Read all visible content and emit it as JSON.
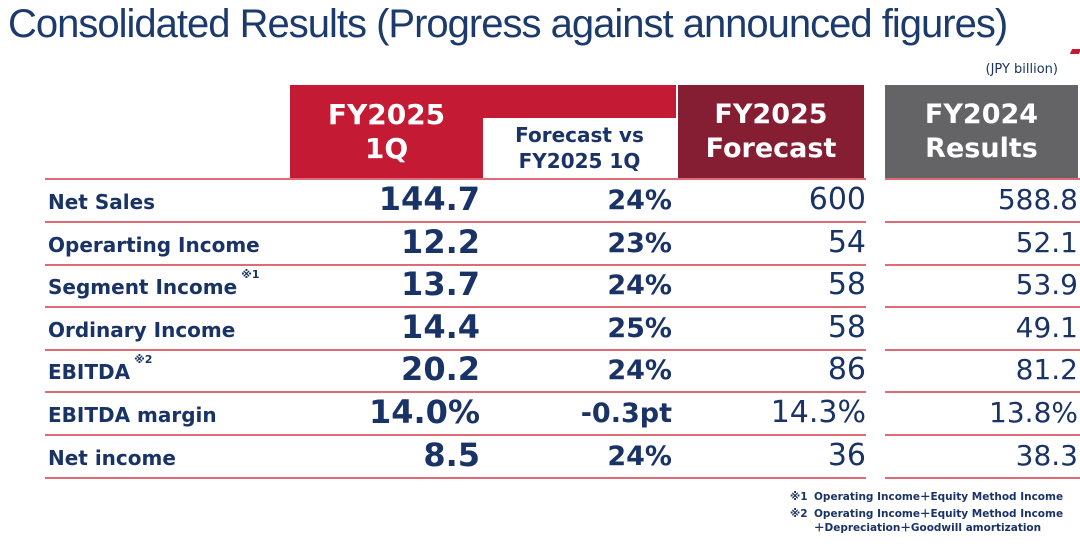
{
  "title": "Consolidated Results (Progress against announced figures)",
  "unit_note": "(JPY billion)",
  "table": {
    "columns": [
      {
        "label": "FY2025 1Q",
        "line1": "FY2025",
        "line2": "1Q"
      },
      {
        "label": "Forecast vs FY2025 1Q",
        "line1": "Forecast vs",
        "line2": "FY2025 1Q"
      },
      {
        "label": "FY2025 Forecast",
        "line1": "FY2025",
        "line2": "Forecast"
      },
      {
        "label": "FY2024 Results",
        "line1": "FY2024",
        "line2": "Results"
      }
    ],
    "rows": [
      {
        "label": "Net Sales",
        "note": "",
        "fy2025_1q": "144.7",
        "forecast_vs": "24%",
        "fy2025_forecast": "600",
        "fy2024_results": "588.8"
      },
      {
        "label": "Operarting Income",
        "note": "",
        "fy2025_1q": "12.2",
        "forecast_vs": "23%",
        "fy2025_forecast": "54",
        "fy2024_results": "52.1"
      },
      {
        "label": "Segment Income",
        "note": "※1",
        "fy2025_1q": "13.7",
        "forecast_vs": "24%",
        "fy2025_forecast": "58",
        "fy2024_results": "53.9"
      },
      {
        "label": "Ordinary Income",
        "note": "",
        "fy2025_1q": "14.4",
        "forecast_vs": "25%",
        "fy2025_forecast": "58",
        "fy2024_results": "49.1"
      },
      {
        "label": "EBITDA",
        "note": "※2",
        "fy2025_1q": "20.2",
        "forecast_vs": "24%",
        "fy2025_forecast": "86",
        "fy2024_results": "81.2"
      },
      {
        "label": "EBITDA margin",
        "note": "",
        "fy2025_1q": "14.0%",
        "forecast_vs": "-0.3pt",
        "fy2025_forecast": "14.3%",
        "fy2024_results": "13.8%"
      },
      {
        "label": "Net income",
        "note": "",
        "fy2025_1q": "8.5",
        "forecast_vs": "24%",
        "fy2025_forecast": "36",
        "fy2024_results": "38.3"
      }
    ]
  },
  "footnotes": [
    {
      "marker": "※1",
      "lines": [
        "Operating Income＋Equity Method Income"
      ]
    },
    {
      "marker": "※2",
      "lines": [
        "Operating Income＋Equity Method Income",
        "＋Depreciation＋Goodwill amortization"
      ]
    }
  ],
  "colors": {
    "accent_red": "#c41a33",
    "maroon": "#851e33",
    "gray": "#646467",
    "row_line_red": "#df6b76",
    "navy_text": "#1a3366"
  }
}
